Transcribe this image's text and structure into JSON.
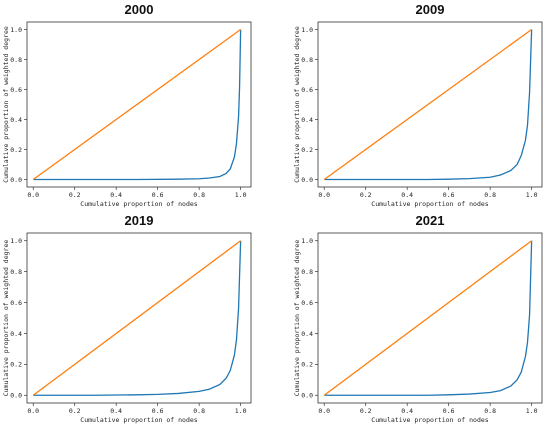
{
  "chart_data": [
    {
      "type": "line",
      "title": "2000",
      "xlabel": "Cumulative proportion of nodes",
      "ylabel": "Cumulative proportion of weighted degree",
      "xlim": [
        -0.03,
        1.05
      ],
      "ylim": [
        -0.05,
        1.05
      ],
      "xticks": [
        "0.0",
        "0.2",
        "0.4",
        "0.6",
        "0.8",
        "1.0"
      ],
      "yticks": [
        "0.0",
        "0.2",
        "0.4",
        "0.6",
        "0.8",
        "1.0"
      ],
      "grid": false,
      "series": [
        {
          "color": "#1f77b4",
          "x": [
            0.0,
            0.5,
            0.7,
            0.8,
            0.85,
            0.9,
            0.93,
            0.95,
            0.97,
            0.98,
            0.99,
            0.995,
            1.0
          ],
          "y": [
            0.0,
            0.0,
            0.002,
            0.005,
            0.01,
            0.02,
            0.04,
            0.07,
            0.15,
            0.24,
            0.42,
            0.62,
            1.0
          ]
        },
        {
          "color": "#ff7f0e",
          "x": [
            0.0,
            1.0
          ],
          "y": [
            0.0,
            1.0
          ]
        }
      ]
    },
    {
      "type": "line",
      "title": "2009",
      "xlabel": "Cumulative proportion of nodes",
      "ylabel": "Cumulative proportion of weighted degree",
      "xlim": [
        -0.03,
        1.05
      ],
      "ylim": [
        -0.05,
        1.05
      ],
      "xticks": [
        "0.0",
        "0.2",
        "0.4",
        "0.6",
        "0.8",
        "1.0"
      ],
      "yticks": [
        "0.0",
        "0.2",
        "0.4",
        "0.6",
        "0.8",
        "1.0"
      ],
      "grid": false,
      "series": [
        {
          "color": "#1f77b4",
          "x": [
            0.0,
            0.5,
            0.6,
            0.7,
            0.8,
            0.85,
            0.9,
            0.93,
            0.95,
            0.97,
            0.98,
            0.99,
            1.0
          ],
          "y": [
            0.0,
            0.0,
            0.002,
            0.006,
            0.015,
            0.03,
            0.06,
            0.1,
            0.16,
            0.26,
            0.36,
            0.58,
            1.0
          ]
        },
        {
          "color": "#ff7f0e",
          "x": [
            0.0,
            1.0
          ],
          "y": [
            0.0,
            1.0
          ]
        }
      ]
    },
    {
      "type": "line",
      "title": "2019",
      "xlabel": "Cumulative proportion of nodes",
      "ylabel": "Cumulative proportion of weighted degree",
      "xlim": [
        -0.03,
        1.05
      ],
      "ylim": [
        -0.05,
        1.05
      ],
      "xticks": [
        "0.0",
        "0.2",
        "0.4",
        "0.6",
        "0.8",
        "1.0"
      ],
      "yticks": [
        "0.0",
        "0.2",
        "0.4",
        "0.6",
        "0.8",
        "1.0"
      ],
      "grid": false,
      "series": [
        {
          "color": "#1f77b4",
          "x": [
            0.0,
            0.3,
            0.5,
            0.6,
            0.7,
            0.8,
            0.85,
            0.9,
            0.93,
            0.95,
            0.97,
            0.98,
            0.99,
            1.0
          ],
          "y": [
            0.0,
            0.0,
            0.003,
            0.006,
            0.012,
            0.025,
            0.04,
            0.07,
            0.11,
            0.16,
            0.26,
            0.36,
            0.56,
            1.0
          ]
        },
        {
          "color": "#ff7f0e",
          "x": [
            0.0,
            1.0
          ],
          "y": [
            0.0,
            1.0
          ]
        }
      ]
    },
    {
      "type": "line",
      "title": "2021",
      "xlabel": "Cumulative proportion of nodes",
      "ylabel": "Cumulative proportion of weighted degree",
      "xlim": [
        -0.03,
        1.05
      ],
      "ylim": [
        -0.05,
        1.05
      ],
      "xticks": [
        "0.0",
        "0.2",
        "0.4",
        "0.6",
        "0.8",
        "1.0"
      ],
      "yticks": [
        "0.0",
        "0.2",
        "0.4",
        "0.6",
        "0.8",
        "1.0"
      ],
      "grid": false,
      "series": [
        {
          "color": "#1f77b4",
          "x": [
            0.0,
            0.5,
            0.6,
            0.7,
            0.8,
            0.85,
            0.9,
            0.93,
            0.95,
            0.97,
            0.98,
            0.99,
            1.0
          ],
          "y": [
            0.0,
            0.0,
            0.003,
            0.008,
            0.018,
            0.03,
            0.06,
            0.1,
            0.15,
            0.25,
            0.34,
            0.52,
            1.0
          ]
        },
        {
          "color": "#ff7f0e",
          "x": [
            0.0,
            1.0
          ],
          "y": [
            0.0,
            1.0
          ]
        }
      ]
    }
  ]
}
